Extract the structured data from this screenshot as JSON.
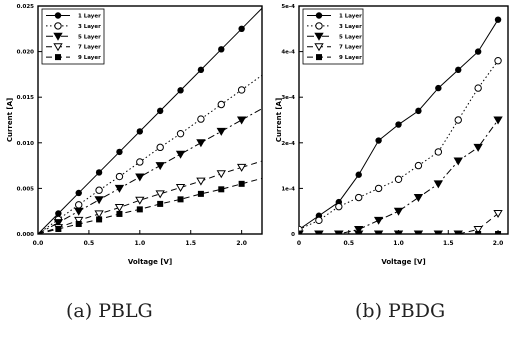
{
  "captions": [
    "(a) PBLG",
    "(b) PBDG"
  ],
  "chart_data": [
    {
      "type": "line",
      "title": "",
      "xlabel": "Voltage [V]",
      "ylabel": "Current [A]",
      "xlim": [
        0.0,
        2.2
      ],
      "ylim": [
        0.0,
        0.025
      ],
      "x_ticks": [
        0.0,
        0.5,
        1.0,
        1.5,
        2.0
      ],
      "x_tick_labels": [
        "0.0",
        "0.5",
        "1.0",
        "1.5",
        "2.0"
      ],
      "y_ticks": [
        0.0,
        0.005,
        0.01,
        0.015,
        0.02,
        0.025
      ],
      "y_tick_labels": [
        "0.000",
        "0.005",
        "0.010",
        "0.015",
        "0.020",
        "0.025"
      ],
      "grid": false,
      "legend_position": "top-left",
      "x": [
        0.0,
        0.2,
        0.4,
        0.6,
        0.8,
        1.0,
        1.2,
        1.4,
        1.6,
        1.8,
        2.0
      ],
      "series": [
        {
          "name": "1 Layer",
          "marker": "filled-circle",
          "line": "solid",
          "values": [
            0.0,
            0.00225,
            0.0045,
            0.00675,
            0.009,
            0.01125,
            0.0135,
            0.01575,
            0.018,
            0.02025,
            0.0225
          ]
        },
        {
          "name": "3 Layer",
          "marker": "open-circle",
          "line": "dotted",
          "values": [
            0.0,
            0.0016,
            0.0032,
            0.0048,
            0.0063,
            0.0079,
            0.0095,
            0.011,
            0.0126,
            0.0142,
            0.0158
          ]
        },
        {
          "name": "5 Layer",
          "marker": "filled-triangle-down",
          "line": "dash-dot",
          "values": [
            0.0,
            0.00125,
            0.0025,
            0.00375,
            0.005,
            0.00625,
            0.0075,
            0.00875,
            0.01,
            0.01125,
            0.0125
          ]
        },
        {
          "name": "7 Layer",
          "marker": "open-triangle-down",
          "line": "dashed",
          "values": [
            0.0,
            0.0007,
            0.0015,
            0.0022,
            0.0029,
            0.0037,
            0.0044,
            0.0051,
            0.0058,
            0.0066,
            0.0073
          ]
        },
        {
          "name": "9 Layer",
          "marker": "filled-square",
          "line": "dashed",
          "values": [
            0.0,
            0.00055,
            0.0011,
            0.0016,
            0.0022,
            0.0027,
            0.0033,
            0.0038,
            0.0044,
            0.0049,
            0.0055
          ]
        }
      ]
    },
    {
      "type": "line",
      "title": "",
      "xlabel": "Voltage [V]",
      "ylabel": "Current [A]",
      "xlim": [
        0.0,
        2.1
      ],
      "ylim": [
        0.0,
        0.0005
      ],
      "x_ticks": [
        0.0,
        0.5,
        1.0,
        1.5,
        2.0
      ],
      "x_tick_labels": [
        "0",
        "0.5",
        "1.0",
        "1.5",
        "2.0"
      ],
      "y_ticks": [
        0.0,
        0.0001,
        0.0002,
        0.0003,
        0.0004,
        0.0005
      ],
      "y_tick_labels": [
        "0",
        "1e-4",
        "2e-4",
        "3e-4",
        "4e-4",
        "5e-4"
      ],
      "grid": false,
      "legend_position": "top-left",
      "x": [
        0.0,
        0.2,
        0.4,
        0.6,
        0.8,
        1.0,
        1.2,
        1.4,
        1.6,
        1.8,
        2.0
      ],
      "series": [
        {
          "name": "1 Layer",
          "marker": "filled-circle",
          "line": "solid",
          "values": [
            1e-05,
            4e-05,
            7e-05,
            0.00013,
            0.000205,
            0.00024,
            0.00027,
            0.00032,
            0.00036,
            0.0004,
            0.00047
          ]
        },
        {
          "name": "3 Layer",
          "marker": "open-circle",
          "line": "dotted",
          "values": [
            1e-05,
            3e-05,
            6e-05,
            8e-05,
            0.0001,
            0.00012,
            0.00015,
            0.00018,
            0.00025,
            0.00032,
            0.00038
          ]
        },
        {
          "name": "5 Layer",
          "marker": "filled-triangle-down",
          "line": "dash-dot",
          "values": [
            0.0,
            0.0,
            0.0,
            1e-05,
            3e-05,
            5e-05,
            8e-05,
            0.00011,
            0.00016,
            0.00019,
            0.00025
          ]
        },
        {
          "name": "7 Layer",
          "marker": "open-triangle-down",
          "line": "dashed",
          "values": [
            0.0,
            0.0,
            0.0,
            0.0,
            0.0,
            0.0,
            0.0,
            0.0,
            0.0,
            1e-05,
            4.5e-05
          ]
        },
        {
          "name": "9 Layer",
          "marker": "filled-square",
          "line": "dashed",
          "values": [
            0.0,
            0.0,
            0.0,
            0.0,
            0.0,
            0.0,
            0.0,
            0.0,
            0.0,
            0.0,
            0.0
          ]
        }
      ]
    }
  ]
}
